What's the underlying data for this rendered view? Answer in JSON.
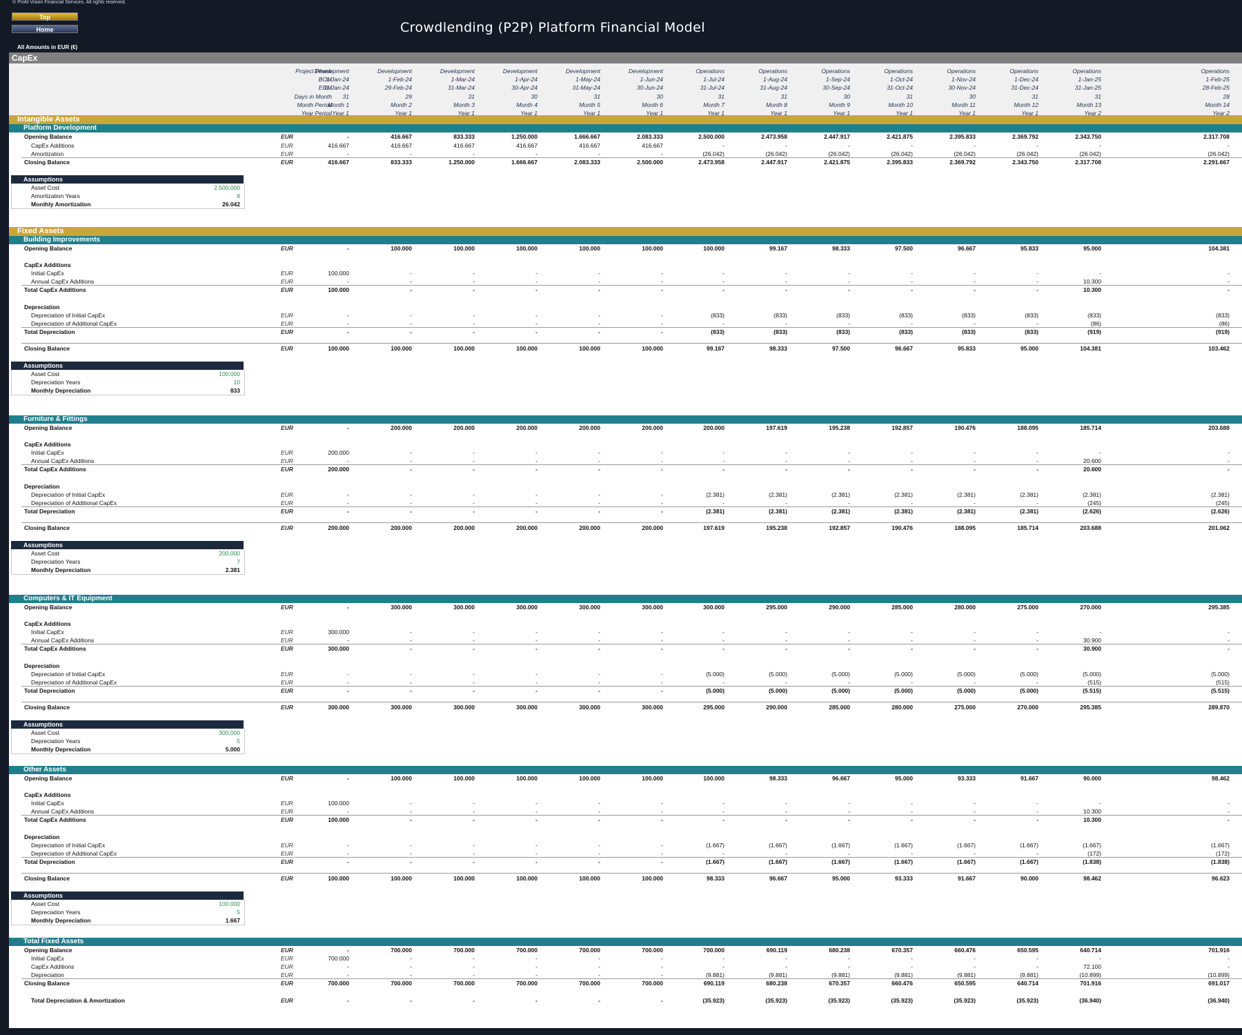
{
  "header": {
    "copyright": "© Profit Vision Financial Services. All rights reserved.",
    "btn_top": "Top",
    "btn_home": "Home",
    "title": "Crowdlending (P2P) Platform Financial Model",
    "amounts": "All Amounts in  EUR (€)"
  },
  "sheet_title": "CapEx",
  "timeline": {
    "labels": [
      "Project Phase",
      "BOM",
      "EOM",
      "Days in Month",
      "Month Period",
      "Year Period"
    ],
    "rows": [
      [
        "Development",
        "Development",
        "Development",
        "Development",
        "Development",
        "Development",
        "Operations",
        "Operations",
        "Operations",
        "Operations",
        "Operations",
        "Operations",
        "Operations",
        "Operations"
      ],
      [
        "1-Jan-24",
        "1-Feb-24",
        "1-Mar-24",
        "1-Apr-24",
        "1-May-24",
        "1-Jun-24",
        "1-Jul-24",
        "1-Aug-24",
        "1-Sep-24",
        "1-Oct-24",
        "1-Nov-24",
        "1-Dec-24",
        "1-Jan-25",
        "1-Feb-25"
      ],
      [
        "31-Jan-24",
        "29-Feb-24",
        "31-Mar-24",
        "30-Apr-24",
        "31-May-24",
        "30-Jun-24",
        "31-Jul-24",
        "31-Aug-24",
        "30-Sep-24",
        "31-Oct-24",
        "30-Nov-24",
        "31-Dec-24",
        "31-Jan-25",
        "28-Feb-25"
      ],
      [
        "31",
        "29",
        "31",
        "30",
        "31",
        "30",
        "31",
        "31",
        "30",
        "31",
        "30",
        "31",
        "31",
        "28"
      ],
      [
        "Month 1",
        "Month 2",
        "Month 3",
        "Month 4",
        "Month 5",
        "Month 6",
        "Month 7",
        "Month 8",
        "Month 9",
        "Month 10",
        "Month 11",
        "Month 12",
        "Month 13",
        "Month 14"
      ],
      [
        "Year 1",
        "Year 1",
        "Year 1",
        "Year 1",
        "Year 1",
        "Year 1",
        "Year 1",
        "Year 1",
        "Year 1",
        "Year 1",
        "Year 1",
        "Year 1",
        "Year 2",
        "Year 2"
      ]
    ]
  },
  "sections": {
    "intangible": {
      "title": "Intangible Assets",
      "sub": "Platform Development",
      "rows": [
        {
          "label": "Opening Balance",
          "unit": "EUR",
          "bold": true,
          "vals": [
            "-",
            "416.667",
            "833.333",
            "1.250.000",
            "1.666.667",
            "2.083.333",
            "2.500.000",
            "2.473.958",
            "2.447.917",
            "2.421.875",
            "2.395.833",
            "2.369.792",
            "2.343.750",
            "2.317.708"
          ]
        },
        {
          "label": "CapEx Additions",
          "unit": "EUR",
          "ind": true,
          "vals": [
            "416.667",
            "416.667",
            "416.667",
            "416.667",
            "416.667",
            "416.667",
            "-",
            "-",
            "-",
            "-",
            "-",
            "-",
            "-",
            "-"
          ]
        },
        {
          "label": "Amortization",
          "unit": "EUR",
          "ind": true,
          "vals": [
            "-",
            "-",
            "-",
            "-",
            "-",
            "-",
            "(26.042)",
            "(26.042)",
            "(26.042)",
            "(26.042)",
            "(26.042)",
            "(26.042)",
            "(26.042)",
            "(26.042)"
          ]
        },
        {
          "label": "Closing Balance",
          "unit": "EUR",
          "bold": true,
          "vals": [
            "416.667",
            "833.333",
            "1.250.000",
            "1.666.667",
            "2.083.333",
            "2.500.000",
            "2.473.958",
            "2.447.917",
            "2.421.875",
            "2.395.833",
            "2.369.792",
            "2.343.750",
            "2.317.708",
            "2.291.667"
          ]
        }
      ],
      "assumptions": {
        "title": "Assumptions",
        "items": [
          [
            "Asset Cost",
            "2.500.000"
          ],
          [
            "Amortization Years",
            "8"
          ],
          [
            "Monthly Amortization",
            "26.042"
          ]
        ]
      }
    },
    "fixed_title": "Fixed Assets",
    "building": {
      "sub": "Building Improvements",
      "opening": [
        "-",
        "100.000",
        "100.000",
        "100.000",
        "100.000",
        "100.000",
        "100.000",
        "99.167",
        "98.333",
        "97.500",
        "96.667",
        "95.833",
        "95.000",
        "104.381"
      ],
      "initial": [
        "100.000",
        "-",
        "-",
        "-",
        "-",
        "-",
        "-",
        "-",
        "-",
        "-",
        "-",
        "-",
        "-",
        "-"
      ],
      "annual": [
        "-",
        "-",
        "-",
        "-",
        "-",
        "-",
        "-",
        "-",
        "-",
        "-",
        "-",
        "-",
        "10.300",
        "-"
      ],
      "total_add": [
        "100.000",
        "-",
        "-",
        "-",
        "-",
        "-",
        "-",
        "-",
        "-",
        "-",
        "-",
        "-",
        "10.300",
        "-"
      ],
      "dep_init": [
        "-",
        "-",
        "-",
        "-",
        "-",
        "-",
        "(833)",
        "(833)",
        "(833)",
        "(833)",
        "(833)",
        "(833)",
        "(833)",
        "(833)"
      ],
      "dep_add": [
        "-",
        "-",
        "-",
        "-",
        "-",
        "-",
        "-",
        "-",
        "-",
        "-",
        "-",
        "-",
        "(86)",
        "(86)"
      ],
      "total_dep": [
        "-",
        "-",
        "-",
        "-",
        "-",
        "-",
        "(833)",
        "(833)",
        "(833)",
        "(833)",
        "(833)",
        "(833)",
        "(919)",
        "(919)"
      ],
      "closing": [
        "100.000",
        "100.000",
        "100.000",
        "100.000",
        "100.000",
        "100.000",
        "99.167",
        "98.333",
        "97.500",
        "96.667",
        "95.833",
        "95.000",
        "104.381",
        "103.462"
      ],
      "assumptions": [
        [
          "Asset Cost",
          "100.000"
        ],
        [
          "Depreciation Years",
          "10"
        ],
        [
          "Monthly Depreciation",
          "833"
        ]
      ]
    },
    "furniture": {
      "sub": "Furniture & Fittings",
      "opening": [
        "-",
        "200.000",
        "200.000",
        "200.000",
        "200.000",
        "200.000",
        "200.000",
        "197.619",
        "195.238",
        "192.857",
        "190.476",
        "188.095",
        "185.714",
        "203.688"
      ],
      "initial": [
        "200.000",
        "-",
        "-",
        "-",
        "-",
        "-",
        "-",
        "-",
        "-",
        "-",
        "-",
        "-",
        "-",
        "-"
      ],
      "annual": [
        "-",
        "-",
        "-",
        "-",
        "-",
        "-",
        "-",
        "-",
        "-",
        "-",
        "-",
        "-",
        "20.600",
        "-"
      ],
      "total_add": [
        "200.000",
        "-",
        "-",
        "-",
        "-",
        "-",
        "-",
        "-",
        "-",
        "-",
        "-",
        "-",
        "20.600",
        "-"
      ],
      "dep_init": [
        "-",
        "-",
        "-",
        "-",
        "-",
        "-",
        "(2.381)",
        "(2.381)",
        "(2.381)",
        "(2.381)",
        "(2.381)",
        "(2.381)",
        "(2.381)",
        "(2.381)"
      ],
      "dep_add": [
        "-",
        "-",
        "-",
        "-",
        "-",
        "-",
        "-",
        "-",
        "-",
        "-",
        "-",
        "-",
        "(245)",
        "(245)"
      ],
      "total_dep": [
        "-",
        "-",
        "-",
        "-",
        "-",
        "-",
        "(2.381)",
        "(2.381)",
        "(2.381)",
        "(2.381)",
        "(2.381)",
        "(2.381)",
        "(2.626)",
        "(2.626)"
      ],
      "closing": [
        "200.000",
        "200.000",
        "200.000",
        "200.000",
        "200.000",
        "200.000",
        "197.619",
        "195.238",
        "192.857",
        "190.476",
        "188.095",
        "185.714",
        "203.688",
        "201.062"
      ],
      "assumptions": [
        [
          "Asset Cost",
          "200.000"
        ],
        [
          "Depreciation Years",
          "7"
        ],
        [
          "Monthly Depreciation",
          "2.381"
        ]
      ]
    },
    "computers": {
      "sub": "Computers & IT Equipment",
      "opening": [
        "-",
        "300.000",
        "300.000",
        "300.000",
        "300.000",
        "300.000",
        "300.000",
        "295.000",
        "290.000",
        "285.000",
        "280.000",
        "275.000",
        "270.000",
        "295.385"
      ],
      "initial": [
        "300.000",
        "-",
        "-",
        "-",
        "-",
        "-",
        "-",
        "-",
        "-",
        "-",
        "-",
        "-",
        "-",
        "-"
      ],
      "annual": [
        "-",
        "-",
        "-",
        "-",
        "-",
        "-",
        "-",
        "-",
        "-",
        "-",
        "-",
        "-",
        "30.900",
        "-"
      ],
      "total_add": [
        "300.000",
        "-",
        "-",
        "-",
        "-",
        "-",
        "-",
        "-",
        "-",
        "-",
        "-",
        "-",
        "30.900",
        "-"
      ],
      "dep_init": [
        "-",
        "-",
        "-",
        "-",
        "-",
        "-",
        "(5.000)",
        "(5.000)",
        "(5.000)",
        "(5.000)",
        "(5.000)",
        "(5.000)",
        "(5.000)",
        "(5.000)"
      ],
      "dep_add": [
        "-",
        "-",
        "-",
        "-",
        "-",
        "-",
        "-",
        "-",
        "-",
        "-",
        "-",
        "-",
        "(515)",
        "(515)"
      ],
      "total_dep": [
        "-",
        "-",
        "-",
        "-",
        "-",
        "-",
        "(5.000)",
        "(5.000)",
        "(5.000)",
        "(5.000)",
        "(5.000)",
        "(5.000)",
        "(5.515)",
        "(5.515)"
      ],
      "closing": [
        "300.000",
        "300.000",
        "300.000",
        "300.000",
        "300.000",
        "300.000",
        "295.000",
        "290.000",
        "285.000",
        "280.000",
        "275.000",
        "270.000",
        "295.385",
        "289.870"
      ],
      "assumptions": [
        [
          "Asset Cost",
          "300.000"
        ],
        [
          "Depreciation Years",
          "5"
        ],
        [
          "Monthly Depreciation",
          "5.000"
        ]
      ]
    },
    "other": {
      "sub": "Other Assets",
      "opening": [
        "-",
        "100.000",
        "100.000",
        "100.000",
        "100.000",
        "100.000",
        "100.000",
        "98.333",
        "96.667",
        "95.000",
        "93.333",
        "91.667",
        "90.000",
        "98.462"
      ],
      "initial": [
        "100.000",
        "-",
        "-",
        "-",
        "-",
        "-",
        "-",
        "-",
        "-",
        "-",
        "-",
        "-",
        "-",
        "-"
      ],
      "annual": [
        "-",
        "-",
        "-",
        "-",
        "-",
        "-",
        "-",
        "-",
        "-",
        "-",
        "-",
        "-",
        "10.300",
        "-"
      ],
      "total_add": [
        "100.000",
        "-",
        "-",
        "-",
        "-",
        "-",
        "-",
        "-",
        "-",
        "-",
        "-",
        "-",
        "10.300",
        "-"
      ],
      "dep_init": [
        "-",
        "-",
        "-",
        "-",
        "-",
        "-",
        "(1.667)",
        "(1.667)",
        "(1.667)",
        "(1.667)",
        "(1.667)",
        "(1.667)",
        "(1.667)",
        "(1.667)"
      ],
      "dep_add": [
        "-",
        "-",
        "-",
        "-",
        "-",
        "-",
        "-",
        "-",
        "-",
        "-",
        "-",
        "-",
        "(172)",
        "(172)"
      ],
      "total_dep": [
        "-",
        "-",
        "-",
        "-",
        "-",
        "-",
        "(1.667)",
        "(1.667)",
        "(1.667)",
        "(1.667)",
        "(1.667)",
        "(1.667)",
        "(1.838)",
        "(1.838)"
      ],
      "closing": [
        "100.000",
        "100.000",
        "100.000",
        "100.000",
        "100.000",
        "100.000",
        "98.333",
        "96.667",
        "95.000",
        "93.333",
        "91.667",
        "90.000",
        "98.462",
        "96.623"
      ],
      "assumptions": [
        [
          "Asset Cost",
          "100.000"
        ],
        [
          "Depreciation Years",
          "5"
        ],
        [
          "Monthly Depreciation",
          "1.667"
        ]
      ]
    },
    "total_fixed": {
      "sub": "Total Fixed Assets",
      "rows": [
        {
          "label": "Opening Balance",
          "bold": true,
          "vals": [
            "-",
            "700.000",
            "700.000",
            "700.000",
            "700.000",
            "700.000",
            "700.000",
            "690.119",
            "680.238",
            "670.357",
            "660.476",
            "650.595",
            "640.714",
            "701.916"
          ]
        },
        {
          "label": "Initial CapEx",
          "ind": true,
          "vals": [
            "700.000",
            "-",
            "-",
            "-",
            "-",
            "-",
            "-",
            "-",
            "-",
            "-",
            "-",
            "-",
            "-",
            "-"
          ]
        },
        {
          "label": "CapEx Additions",
          "ind": true,
          "vals": [
            "-",
            "-",
            "-",
            "-",
            "-",
            "-",
            "-",
            "-",
            "-",
            "-",
            "-",
            "-",
            "72.100",
            "-"
          ]
        },
        {
          "label": "Depreciation",
          "ind": true,
          "vals": [
            "-",
            "-",
            "-",
            "-",
            "-",
            "-",
            "(9.881)",
            "(9.881)",
            "(9.881)",
            "(9.881)",
            "(9.881)",
            "(9.881)",
            "(10.899)",
            "(10.899)"
          ]
        },
        {
          "label": "Closing Balance",
          "bold": true,
          "vals": [
            "700.000",
            "700.000",
            "700.000",
            "700.000",
            "700.000",
            "700.000",
            "690.119",
            "680.238",
            "670.357",
            "660.476",
            "650.595",
            "640.714",
            "701.916",
            "691.017"
          ]
        }
      ],
      "total_da": {
        "label": "Total Depreciation & Amortization",
        "vals": [
          "-",
          "-",
          "-",
          "-",
          "-",
          "-",
          "(35.923)",
          "(35.923)",
          "(35.923)",
          "(35.923)",
          "(35.923)",
          "(35.923)",
          "(36.940)",
          "(36.940)"
        ]
      }
    }
  },
  "labels": {
    "unit": "EUR",
    "opening": "Opening Balance",
    "capex_additions": "CapEx Additions",
    "initial": "Initial CapEx",
    "annual": "Annual CapEx Additions",
    "total_add": "Total CapEx Additions",
    "depreciation": "Depreciation",
    "dep_init": "Depreciation of Initial CapEx",
    "dep_add": "Depreciation of Additional CapEx",
    "total_dep": "Total Depreciation",
    "closing": "Closing Balance",
    "assumptions": "Assumptions"
  },
  "colors": {
    "gold": "#c9a63c",
    "teal": "#1f7f8c",
    "navy": "#131a26",
    "green_input": "#2a8a4a"
  }
}
